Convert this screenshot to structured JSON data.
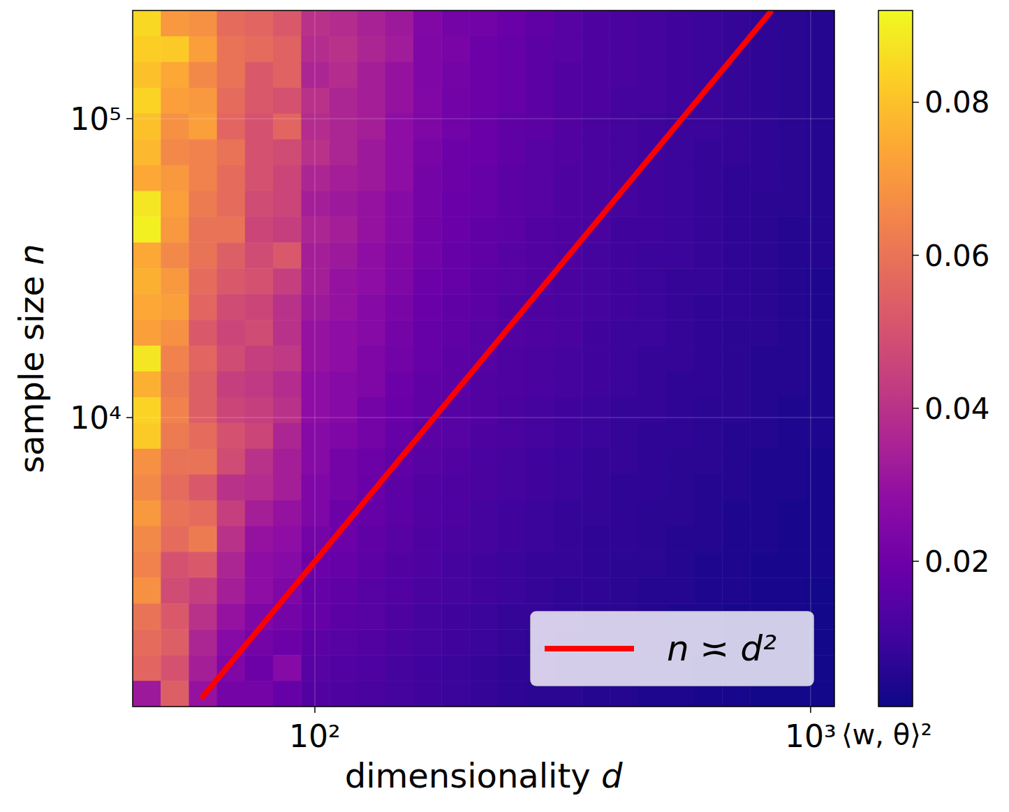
{
  "chart_data": {
    "type": "heatmap",
    "xlabel": "dimensionality d",
    "ylabel": "sample size n",
    "log": true,
    "grid": true,
    "legend": "lower right",
    "xlim": [
      42.9,
      1117
    ],
    "ylim": [
      1080,
      230000
    ],
    "xticks": [
      {
        "value": 100,
        "label": "10²"
      },
      {
        "value": 1000,
        "label": "10³"
      }
    ],
    "yticks": [
      {
        "value": 10000,
        "label": "10⁴"
      },
      {
        "value": 100000,
        "label": "10⁵"
      }
    ],
    "cells": [
      [
        0.085,
        0.07,
        0.068,
        0.058,
        0.056,
        0.052,
        0.04,
        0.038,
        0.035,
        0.032,
        0.025,
        0.022,
        0.021,
        0.019,
        0.017,
        0.015,
        0.013,
        0.012,
        0.011,
        0.01,
        0.009,
        0.008,
        0.007,
        0.006,
        0.005
      ],
      [
        0.083,
        0.082,
        0.072,
        0.06,
        0.058,
        0.055,
        0.038,
        0.04,
        0.036,
        0.033,
        0.024,
        0.023,
        0.02,
        0.018,
        0.016,
        0.015,
        0.013,
        0.012,
        0.011,
        0.01,
        0.009,
        0.008,
        0.007,
        0.006,
        0.005
      ],
      [
        0.08,
        0.074,
        0.066,
        0.06,
        0.052,
        0.055,
        0.036,
        0.038,
        0.034,
        0.03,
        0.024,
        0.022,
        0.02,
        0.018,
        0.016,
        0.014,
        0.013,
        0.012,
        0.011,
        0.01,
        0.009,
        0.008,
        0.007,
        0.006,
        0.005
      ],
      [
        0.084,
        0.072,
        0.07,
        0.058,
        0.052,
        0.05,
        0.04,
        0.036,
        0.034,
        0.03,
        0.025,
        0.021,
        0.02,
        0.018,
        0.016,
        0.014,
        0.013,
        0.011,
        0.011,
        0.01,
        0.009,
        0.008,
        0.007,
        0.006,
        0.005
      ],
      [
        0.08,
        0.068,
        0.072,
        0.056,
        0.05,
        0.056,
        0.038,
        0.036,
        0.034,
        0.028,
        0.024,
        0.021,
        0.019,
        0.017,
        0.016,
        0.014,
        0.012,
        0.011,
        0.01,
        0.009,
        0.009,
        0.008,
        0.007,
        0.006,
        0.005
      ],
      [
        0.078,
        0.066,
        0.064,
        0.06,
        0.05,
        0.048,
        0.04,
        0.036,
        0.032,
        0.028,
        0.023,
        0.02,
        0.019,
        0.017,
        0.015,
        0.014,
        0.012,
        0.011,
        0.01,
        0.009,
        0.008,
        0.008,
        0.007,
        0.006,
        0.005
      ],
      [
        0.074,
        0.07,
        0.064,
        0.058,
        0.05,
        0.046,
        0.036,
        0.034,
        0.032,
        0.028,
        0.022,
        0.02,
        0.018,
        0.016,
        0.015,
        0.013,
        0.012,
        0.011,
        0.01,
        0.009,
        0.008,
        0.007,
        0.007,
        0.006,
        0.005
      ],
      [
        0.088,
        0.072,
        0.062,
        0.058,
        0.048,
        0.046,
        0.034,
        0.032,
        0.03,
        0.026,
        0.022,
        0.019,
        0.018,
        0.016,
        0.015,
        0.013,
        0.012,
        0.011,
        0.01,
        0.009,
        0.008,
        0.007,
        0.006,
        0.006,
        0.005
      ],
      [
        0.09,
        0.07,
        0.06,
        0.06,
        0.046,
        0.044,
        0.036,
        0.034,
        0.03,
        0.026,
        0.021,
        0.019,
        0.017,
        0.016,
        0.014,
        0.013,
        0.012,
        0.01,
        0.01,
        0.009,
        0.008,
        0.007,
        0.006,
        0.005,
        0.005
      ],
      [
        0.074,
        0.066,
        0.06,
        0.054,
        0.048,
        0.052,
        0.034,
        0.032,
        0.028,
        0.025,
        0.021,
        0.018,
        0.017,
        0.015,
        0.014,
        0.013,
        0.011,
        0.01,
        0.009,
        0.009,
        0.008,
        0.007,
        0.006,
        0.005,
        0.005
      ],
      [
        0.076,
        0.07,
        0.058,
        0.052,
        0.05,
        0.044,
        0.034,
        0.03,
        0.028,
        0.024,
        0.02,
        0.018,
        0.016,
        0.015,
        0.014,
        0.012,
        0.011,
        0.01,
        0.009,
        0.008,
        0.008,
        0.007,
        0.006,
        0.005,
        0.004
      ],
      [
        0.074,
        0.072,
        0.056,
        0.048,
        0.046,
        0.04,
        0.032,
        0.03,
        0.026,
        0.023,
        0.019,
        0.017,
        0.016,
        0.014,
        0.013,
        0.012,
        0.011,
        0.01,
        0.009,
        0.008,
        0.007,
        0.007,
        0.006,
        0.005,
        0.004
      ],
      [
        0.072,
        0.068,
        0.052,
        0.046,
        0.048,
        0.04,
        0.03,
        0.028,
        0.026,
        0.022,
        0.018,
        0.017,
        0.015,
        0.014,
        0.013,
        0.012,
        0.01,
        0.009,
        0.009,
        0.008,
        0.007,
        0.006,
        0.006,
        0.005,
        0.004
      ],
      [
        0.088,
        0.064,
        0.056,
        0.048,
        0.044,
        0.042,
        0.03,
        0.028,
        0.024,
        0.021,
        0.018,
        0.016,
        0.015,
        0.013,
        0.012,
        0.011,
        0.01,
        0.009,
        0.008,
        0.008,
        0.007,
        0.006,
        0.005,
        0.005,
        0.004
      ],
      [
        0.076,
        0.062,
        0.054,
        0.044,
        0.042,
        0.038,
        0.028,
        0.026,
        0.024,
        0.02,
        0.017,
        0.016,
        0.014,
        0.013,
        0.012,
        0.011,
        0.01,
        0.009,
        0.008,
        0.007,
        0.007,
        0.006,
        0.005,
        0.005,
        0.004
      ],
      [
        0.084,
        0.064,
        0.054,
        0.046,
        0.044,
        0.04,
        0.028,
        0.026,
        0.022,
        0.019,
        0.017,
        0.015,
        0.014,
        0.012,
        0.011,
        0.01,
        0.009,
        0.008,
        0.008,
        0.007,
        0.006,
        0.006,
        0.005,
        0.004,
        0.004
      ],
      [
        0.082,
        0.062,
        0.058,
        0.05,
        0.046,
        0.036,
        0.026,
        0.024,
        0.022,
        0.018,
        0.016,
        0.015,
        0.013,
        0.012,
        0.011,
        0.01,
        0.009,
        0.008,
        0.007,
        0.007,
        0.006,
        0.005,
        0.005,
        0.004,
        0.004
      ],
      [
        0.068,
        0.06,
        0.06,
        0.048,
        0.04,
        0.034,
        0.026,
        0.022,
        0.02,
        0.017,
        0.015,
        0.014,
        0.012,
        0.011,
        0.01,
        0.009,
        0.008,
        0.008,
        0.007,
        0.006,
        0.006,
        0.005,
        0.004,
        0.004,
        0.003
      ],
      [
        0.066,
        0.058,
        0.052,
        0.04,
        0.038,
        0.034,
        0.024,
        0.022,
        0.019,
        0.016,
        0.014,
        0.013,
        0.012,
        0.011,
        0.01,
        0.009,
        0.008,
        0.007,
        0.007,
        0.006,
        0.005,
        0.005,
        0.004,
        0.004,
        0.003
      ],
      [
        0.07,
        0.06,
        0.058,
        0.044,
        0.034,
        0.03,
        0.024,
        0.02,
        0.018,
        0.016,
        0.014,
        0.013,
        0.011,
        0.01,
        0.009,
        0.008,
        0.008,
        0.007,
        0.006,
        0.006,
        0.005,
        0.004,
        0.004,
        0.003,
        0.003
      ],
      [
        0.066,
        0.058,
        0.062,
        0.04,
        0.03,
        0.028,
        0.022,
        0.02,
        0.017,
        0.015,
        0.013,
        0.012,
        0.011,
        0.01,
        0.009,
        0.008,
        0.007,
        0.007,
        0.006,
        0.005,
        0.005,
        0.004,
        0.004,
        0.003,
        0.003
      ],
      [
        0.064,
        0.05,
        0.052,
        0.036,
        0.028,
        0.026,
        0.02,
        0.018,
        0.016,
        0.014,
        0.013,
        0.011,
        0.01,
        0.009,
        0.008,
        0.008,
        0.007,
        0.006,
        0.006,
        0.005,
        0.004,
        0.004,
        0.003,
        0.003,
        0.003
      ],
      [
        0.068,
        0.048,
        0.044,
        0.034,
        0.028,
        0.024,
        0.018,
        0.017,
        0.015,
        0.014,
        0.012,
        0.011,
        0.01,
        0.009,
        0.008,
        0.007,
        0.007,
        0.006,
        0.005,
        0.005,
        0.004,
        0.004,
        0.003,
        0.003,
        0.002
      ],
      [
        0.06,
        0.052,
        0.04,
        0.03,
        0.024,
        0.022,
        0.018,
        0.016,
        0.015,
        0.013,
        0.011,
        0.01,
        0.009,
        0.008,
        0.008,
        0.007,
        0.006,
        0.006,
        0.005,
        0.004,
        0.004,
        0.003,
        0.003,
        0.003,
        0.002
      ],
      [
        0.058,
        0.054,
        0.036,
        0.026,
        0.022,
        0.02,
        0.016,
        0.015,
        0.014,
        0.012,
        0.011,
        0.01,
        0.009,
        0.008,
        0.007,
        0.006,
        0.006,
        0.005,
        0.005,
        0.004,
        0.004,
        0.003,
        0.003,
        0.002,
        0.002
      ],
      [
        0.056,
        0.05,
        0.034,
        0.024,
        0.02,
        0.026,
        0.015,
        0.014,
        0.013,
        0.011,
        0.01,
        0.009,
        0.008,
        0.007,
        0.007,
        0.006,
        0.005,
        0.005,
        0.004,
        0.004,
        0.003,
        0.003,
        0.003,
        0.002,
        0.002
      ],
      [
        0.032,
        0.054,
        0.03,
        0.022,
        0.022,
        0.018,
        0.014,
        0.013,
        0.012,
        0.011,
        0.01,
        0.009,
        0.008,
        0.007,
        0.006,
        0.006,
        0.005,
        0.005,
        0.004,
        0.004,
        0.003,
        0.003,
        0.002,
        0.002,
        0.002
      ]
    ],
    "colorbar": {
      "label": "⟨w, θ⟩²",
      "range": [
        0.001,
        0.092
      ],
      "ticks": [
        0.02,
        0.04,
        0.06,
        0.08
      ]
    },
    "series": [
      {
        "name": "n ≍ d²",
        "type": "line",
        "color": "#ff0000",
        "x": [
          59,
          835
        ],
        "values": [
          1150,
          230000
        ]
      }
    ]
  }
}
